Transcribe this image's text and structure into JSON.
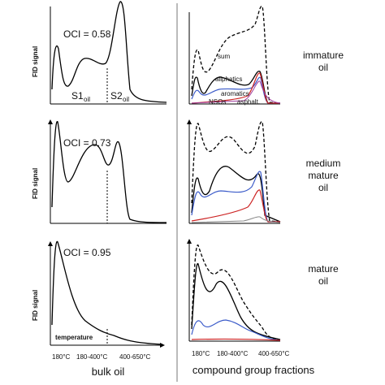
{
  "left": {
    "panels": [
      {
        "ylabel": "FID signal",
        "oci": "OCI = 0.58",
        "s1": "S1",
        "s1_sub": "oil",
        "s2": "S2",
        "s2_sub": "oil"
      },
      {
        "ylabel": "FID signal",
        "oci": "OCI = 0.73"
      },
      {
        "ylabel": "FID signal",
        "oci": "OCI = 0.95",
        "xlabel": "temperature"
      }
    ],
    "xticks": [
      "180°C",
      "180-400°C",
      "400-650°C"
    ],
    "caption": "bulk oil"
  },
  "right": {
    "legend": {
      "sum": "sum",
      "aliphatics": "aliphatics",
      "aromatics": "aromatics",
      "nsos": "NSOs",
      "asphalt": "asphalt."
    },
    "panel_labels": [
      [
        "immature",
        "oil"
      ],
      [
        "medium",
        "mature",
        "oil"
      ],
      [
        "mature",
        "oil"
      ]
    ],
    "xticks": [
      "180°C",
      "180-400°C",
      "400-650°C"
    ],
    "caption": "compound group fractions"
  }
}
